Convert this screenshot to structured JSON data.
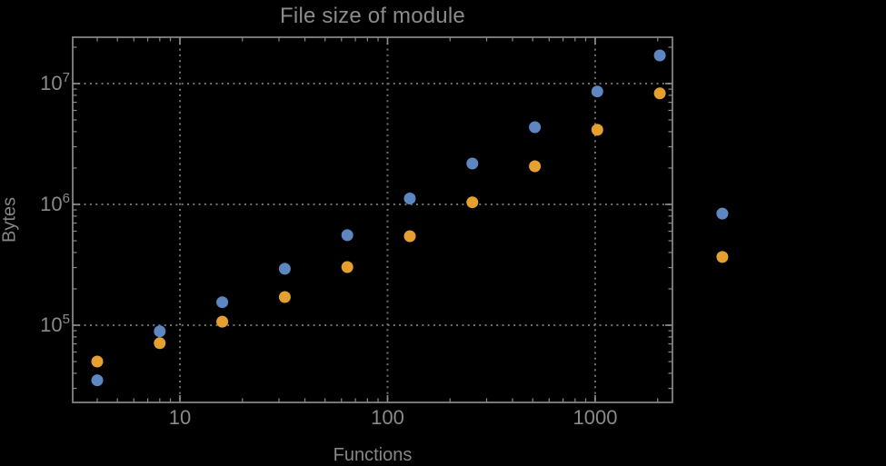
{
  "page": {
    "background": "#000000"
  },
  "chart_data": {
    "type": "scatter",
    "title": "File size of module",
    "xlabel": "Functions",
    "ylabel": "Bytes",
    "x_scale": "log",
    "y_scale": "log",
    "xlim": [
      3.046,
      2355
    ],
    "ylim": [
      22960,
      24180000
    ],
    "grid": "dotted lines at major ticks",
    "legend": "none",
    "clip_points_to_frame": false,
    "x_ticks": [
      {
        "value": 10,
        "label": "10"
      },
      {
        "value": 100,
        "label": "100"
      },
      {
        "value": 1000,
        "label": "1000"
      }
    ],
    "y_ticks": [
      {
        "value": 100000,
        "mantissa": "10",
        "exponent": "5"
      },
      {
        "value": 1000000,
        "mantissa": "10",
        "exponent": "6"
      },
      {
        "value": 10000000,
        "mantissa": "10",
        "exponent": "7"
      }
    ],
    "x": [
      4,
      8,
      16,
      32,
      64,
      128,
      256,
      512,
      1024,
      2048,
      4096
    ],
    "series": [
      {
        "name": "blue-series",
        "color": "#5e86c1",
        "values": [
          35000,
          89000,
          155000,
          293000,
          556000,
          1120000,
          2180000,
          4360000,
          8600000,
          17100000,
          840000
        ]
      },
      {
        "name": "orange-series",
        "color": "#e6a02f",
        "values": [
          50000,
          71000,
          107000,
          171000,
          303000,
          546000,
          1040000,
          2070000,
          4140000,
          8300000,
          367000
        ]
      }
    ],
    "styles": {
      "frame_color": "#8a8a8a",
      "grid_color": "#6f6f6f",
      "tick_label_color": "#8a8a8a",
      "title_color": "#8b8b8b",
      "axis_label_color": "#868686",
      "point_radius": 6.5
    }
  }
}
